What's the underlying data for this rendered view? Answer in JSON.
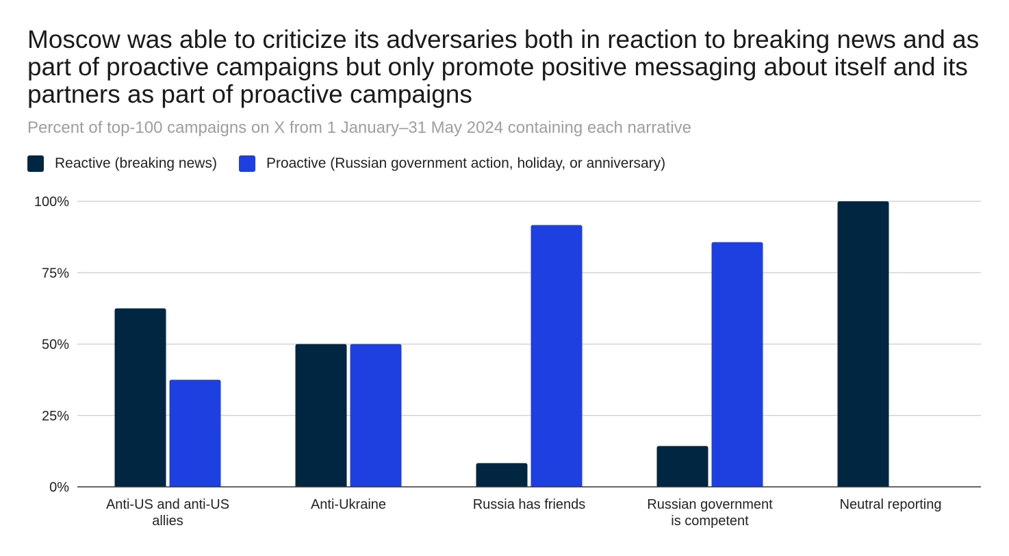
{
  "chart_data": {
    "type": "bar",
    "title": "Moscow was able to criticize its adversaries both in reaction to breaking news and as part of proactive campaigns but only promote positive messaging about itself and its partners as part of proactive campaigns",
    "subtitle": "Percent of top-100 campaigns on X from 1 January–31 May 2024 containing each narrative",
    "categories": [
      [
        "Anti-US and anti-US",
        "allies"
      ],
      [
        "Anti-Ukraine"
      ],
      [
        "Russia has friends"
      ],
      [
        "Russian government",
        "is competent"
      ],
      [
        "Neutral reporting"
      ]
    ],
    "series": [
      {
        "name": "Reactive (breaking news)",
        "color": "#002642",
        "values": [
          62.5,
          50,
          8.3,
          14.3,
          100
        ]
      },
      {
        "name": "Proactive (Russian government action, holiday, or anniversary)",
        "color": "#1f40e0",
        "values": [
          37.5,
          50,
          91.7,
          85.7,
          0
        ]
      }
    ],
    "ylim": [
      0,
      100
    ],
    "yticks": [
      "0%",
      "25%",
      "50%",
      "75%",
      "100%"
    ],
    "ytick_values": [
      0,
      25,
      50,
      75,
      100
    ],
    "grid": true,
    "legend_position": "top-left"
  }
}
